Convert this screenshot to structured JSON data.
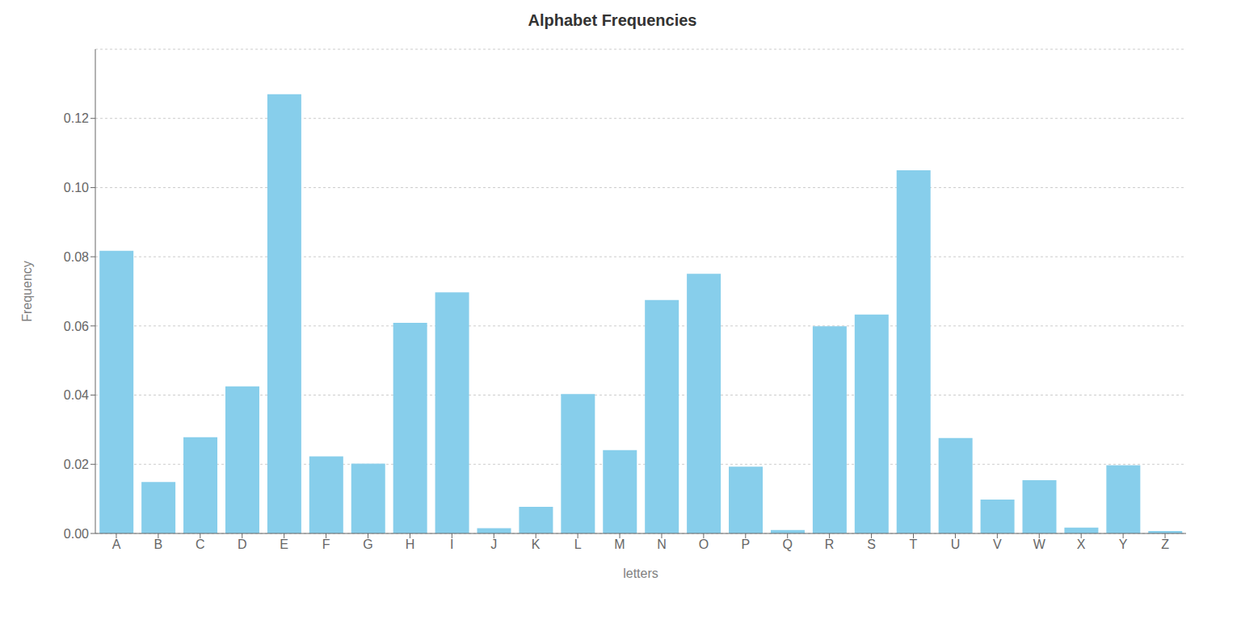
{
  "chart_data": {
    "type": "bar",
    "title": "Alphabet Frequencies",
    "xlabel": "letters",
    "ylabel": "Frequency",
    "categories": [
      "A",
      "B",
      "C",
      "D",
      "E",
      "F",
      "G",
      "H",
      "I",
      "J",
      "K",
      "L",
      "M",
      "N",
      "O",
      "P",
      "Q",
      "R",
      "S",
      "T",
      "U",
      "V",
      "W",
      "X",
      "Y",
      "Z"
    ],
    "values": [
      0.0817,
      0.0149,
      0.0278,
      0.0425,
      0.127,
      0.0223,
      0.0202,
      0.0609,
      0.0697,
      0.0015,
      0.0077,
      0.0403,
      0.0241,
      0.0675,
      0.0751,
      0.0193,
      0.001,
      0.0599,
      0.0633,
      0.105,
      0.0276,
      0.0098,
      0.0154,
      0.0017,
      0.0197,
      0.0007
    ],
    "color": "#87CEEB",
    "ylim": [
      0,
      0.14
    ],
    "yticks": [
      {
        "value": 0.0,
        "label": "0.00"
      },
      {
        "value": 0.02,
        "label": "0.02"
      },
      {
        "value": 0.04,
        "label": "0.04"
      },
      {
        "value": 0.06,
        "label": "0.06"
      },
      {
        "value": 0.08,
        "label": "0.08"
      },
      {
        "value": 0.1,
        "label": "0.10"
      },
      {
        "value": 0.12,
        "label": "0.12"
      }
    ],
    "grid": true
  }
}
